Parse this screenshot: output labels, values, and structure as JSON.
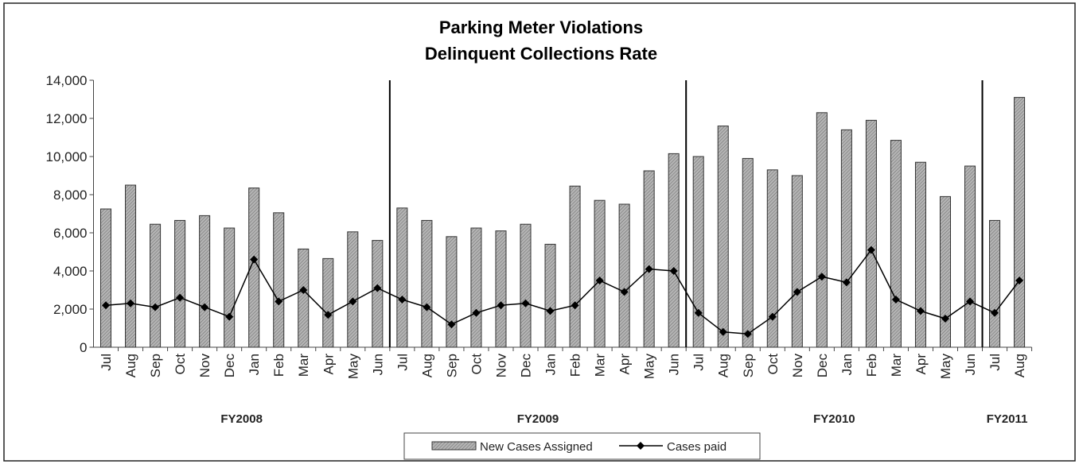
{
  "chart_data": {
    "type": "bar_line",
    "title": [
      "Parking Meter Violations",
      "Delinquent Collections Rate"
    ],
    "categories": [
      "Jul",
      "Aug",
      "Sep",
      "Oct",
      "Nov",
      "Dec",
      "Jan",
      "Feb",
      "Mar",
      "Apr",
      "May",
      "Jun",
      "Jul",
      "Aug",
      "Sep",
      "Oct",
      "Nov",
      "Dec",
      "Jan",
      "Feb",
      "Mar",
      "Apr",
      "May",
      "Jun",
      "Jul",
      "Aug",
      "Sep",
      "Oct",
      "Nov",
      "Dec",
      "Jan",
      "Feb",
      "Mar",
      "Apr",
      "May",
      "Jun",
      "Jul",
      "Aug"
    ],
    "groups": [
      {
        "label": "FY2008",
        "count": 12
      },
      {
        "label": "FY2009",
        "count": 12
      },
      {
        "label": "FY2010",
        "count": 12
      },
      {
        "label": "FY2011",
        "count": 2
      }
    ],
    "series": [
      {
        "name": "New Cases Assigned",
        "kind": "bar",
        "color": "#a0a0a0",
        "values": [
          7250,
          8500,
          6450,
          6650,
          6900,
          6250,
          8350,
          7050,
          5150,
          4650,
          6050,
          5600,
          7300,
          6650,
          5800,
          6250,
          6100,
          6450,
          5400,
          8450,
          7700,
          7500,
          9250,
          10150,
          10000,
          11600,
          9900,
          9300,
          9000,
          12300,
          11400,
          11900,
          10850,
          9700,
          7900,
          9500,
          6650,
          13100
        ]
      },
      {
        "name": "Cases paid",
        "kind": "line",
        "color": "#000000",
        "values": [
          2200,
          2300,
          2100,
          2600,
          2100,
          1600,
          4600,
          2400,
          3000,
          1700,
          2400,
          3100,
          2500,
          2100,
          1200,
          1800,
          2200,
          2300,
          1900,
          2200,
          3500,
          2900,
          4100,
          4000,
          1800,
          800,
          700,
          1600,
          2900,
          3700,
          3400,
          5100,
          2500,
          1900,
          1500,
          2400,
          1800,
          3500
        ]
      }
    ],
    "ylim": [
      0,
      14000
    ],
    "yticks": [
      0,
      {
        "value": 2000,
        "label": "2,000"
      },
      {
        "value": 4000,
        "label": "4,000"
      },
      {
        "value": 6000,
        "label": "6,000"
      },
      {
        "value": 8000,
        "label": "8,000"
      },
      {
        "value": 10000,
        "label": "10,000"
      },
      {
        "value": 12000,
        "label": "12,000"
      },
      {
        "value": 14000,
        "label": "14,000"
      }
    ],
    "grid": false,
    "legend": "bottom"
  }
}
